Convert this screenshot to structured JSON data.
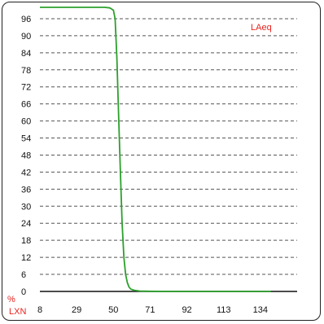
{
  "chart_data": {
    "type": "line",
    "legend": "LAeq",
    "xlabel": "LXN",
    "ylabel": "%",
    "x_ticks": [
      8,
      29,
      50,
      71,
      92,
      113,
      134
    ],
    "y_ticks": [
      0,
      6,
      12,
      18,
      24,
      30,
      36,
      42,
      48,
      54,
      60,
      66,
      72,
      78,
      84,
      90,
      96
    ],
    "xlim": [
      8,
      155
    ],
    "ylim": [
      0,
      100
    ],
    "grid": "horizontal-dashed",
    "legend_position": "top-right",
    "colors": {
      "line": "#2ca02c",
      "legend": "#e8231f",
      "axis_labels": "#e8231f",
      "grid": "#555555"
    },
    "series": [
      {
        "x": [
          8,
          30,
          45,
          48,
          50,
          51,
          52,
          53,
          54,
          55,
          56,
          57,
          58,
          59,
          60,
          62,
          65,
          70,
          80,
          100,
          130,
          140
        ],
        "y": [
          100,
          100,
          100,
          99.8,
          99,
          96,
          82,
          62,
          42,
          24,
          12,
          6,
          3,
          1.5,
          0.8,
          0.4,
          0.15,
          0.05,
          0,
          0,
          0,
          0
        ]
      }
    ]
  }
}
